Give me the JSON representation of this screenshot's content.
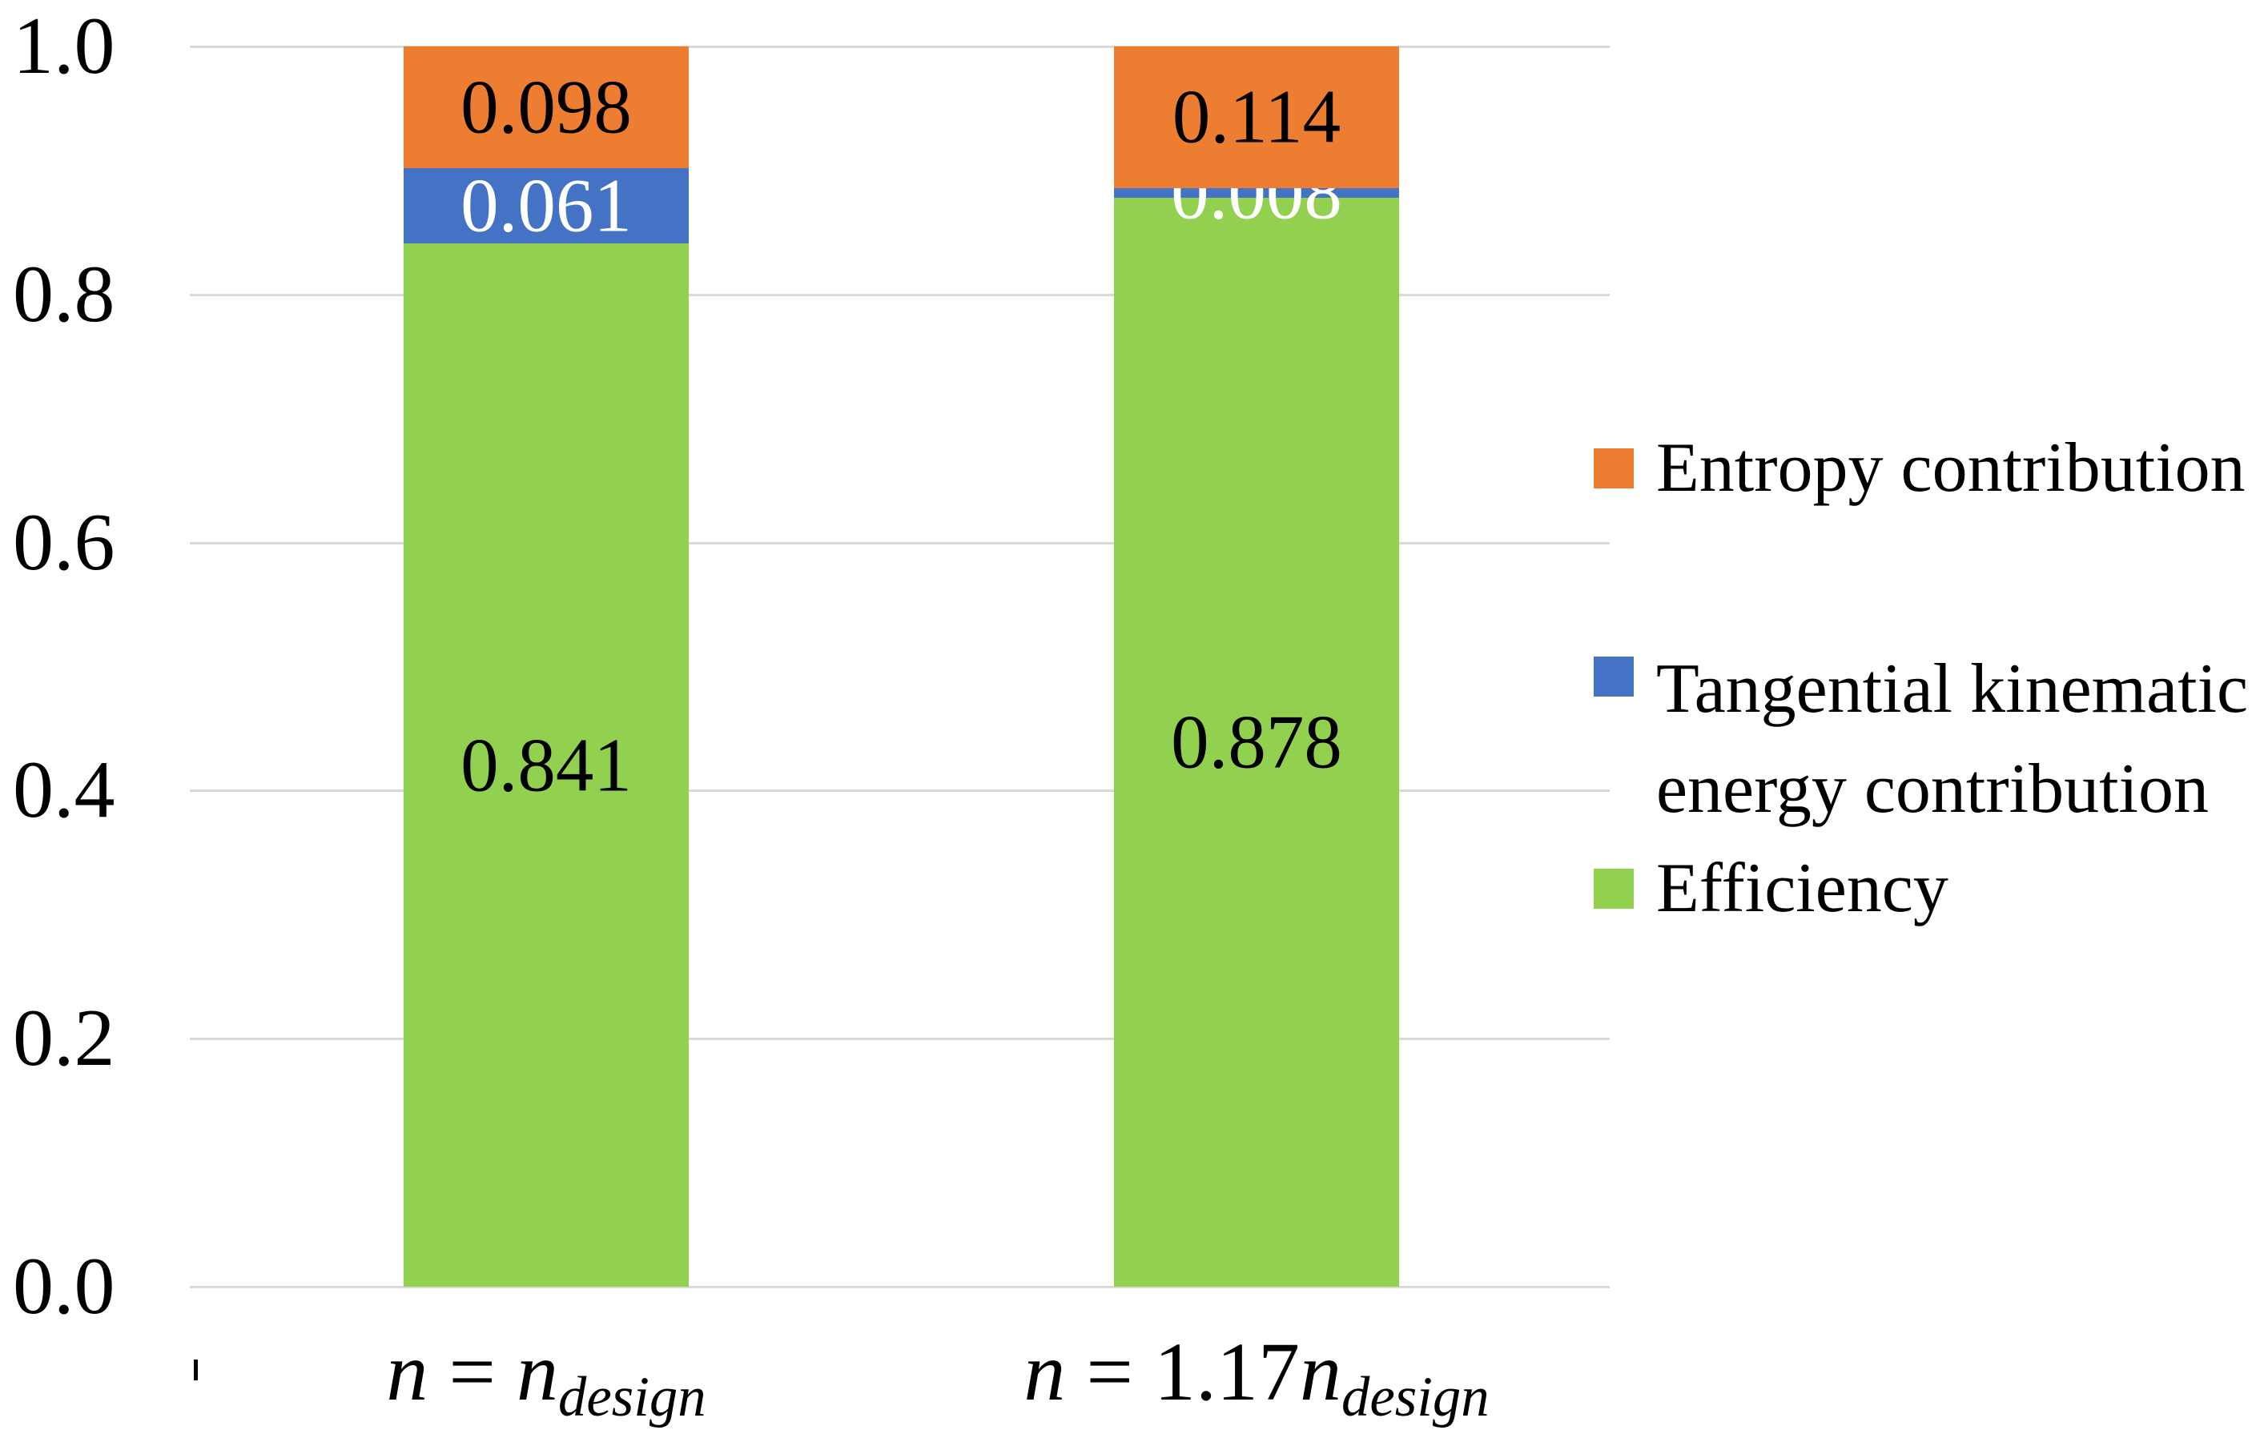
{
  "figure": {
    "background": "#FFFFFF",
    "text_color": "#000000"
  },
  "chart_data": {
    "type": "bar",
    "stacked": true,
    "title": "",
    "xlabel": "",
    "ylabel": "",
    "categories_plain": [
      "n = n_design",
      "n = 1.17n_design"
    ],
    "x_labels": [
      {
        "parts": [
          {
            "text": "n",
            "style": "italic"
          },
          {
            "text": " = ",
            "style": "normal"
          },
          {
            "text": "n",
            "style": "italic"
          },
          {
            "text": "design",
            "style": "italic-subscript"
          }
        ]
      },
      {
        "parts": [
          {
            "text": "n",
            "style": "italic"
          },
          {
            "text": " = ",
            "style": "normal"
          },
          {
            "text": "1.17",
            "style": "normal"
          },
          {
            "text": "n",
            "style": "italic"
          },
          {
            "text": "design",
            "style": "italic-subscript"
          }
        ]
      }
    ],
    "series": [
      {
        "name": "Efficiency",
        "color": "#92D050",
        "values": [
          0.841,
          0.878
        ],
        "data_label_color": "#000000"
      },
      {
        "name": "Tangential kinematic energy contribution",
        "color": "#4472C4",
        "values": [
          0.061,
          0.008
        ],
        "data_label_color": "#FFFFFF"
      },
      {
        "name": "Entropy contribution",
        "color": "#ED7D31",
        "values": [
          0.098,
          0.114
        ],
        "data_label_color": "#000000"
      }
    ],
    "data_labels": {
      "shown": true,
      "decimals": 3
    },
    "y_axis": {
      "ticks": [
        "0.0",
        "0.2",
        "0.4",
        "0.6",
        "0.8",
        "1.0"
      ],
      "min": 0.0,
      "max": 1.0
    },
    "gridlines": {
      "show": true,
      "color": "#D9D9D9",
      "interval": 0.2
    },
    "legend": {
      "position": "right",
      "entries": [
        {
          "label_lines": [
            "Entropy contribution"
          ],
          "color": "#ED7D31"
        },
        {
          "label_lines": [
            "Tangential kinematic",
            "energy contribution"
          ],
          "color": "#4472C4"
        },
        {
          "label_lines": [
            "Efficiency"
          ],
          "color": "#92D050"
        }
      ]
    }
  }
}
